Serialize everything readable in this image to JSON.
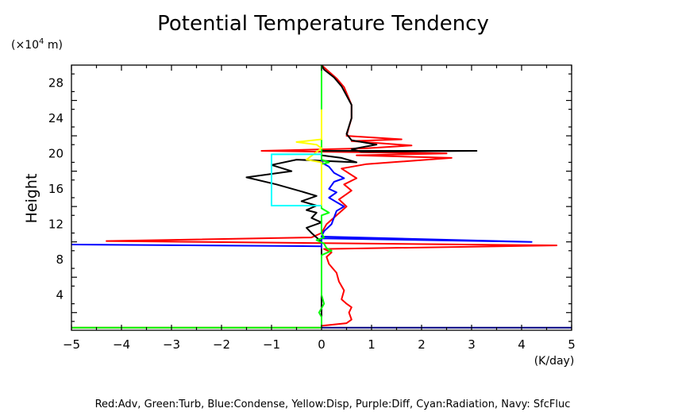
{
  "chart_data": {
    "type": "line",
    "title": "Potential Temperature Tendency",
    "ylabel": "Height",
    "y_unit_label_pre": "(×10",
    "y_unit_label_exp": "4",
    "y_unit_label_post": " m)",
    "x_unit_label": "(K/day)",
    "legend_text": "Red:Adv, Green:Turb, Blue:Condense, Yellow:Disp, Purple:Diff, Cyan:Radiation, Navy: SfcFluc",
    "xlim": [
      -5,
      5
    ],
    "ylim": [
      0,
      30
    ],
    "x_ticks": [
      {
        "v": -5,
        "label": "−5"
      },
      {
        "v": -4,
        "label": "−4"
      },
      {
        "v": -3,
        "label": "−3"
      },
      {
        "v": -2,
        "label": "−2"
      },
      {
        "v": -1,
        "label": "−1"
      },
      {
        "v": 0,
        "label": "0"
      },
      {
        "v": 1,
        "label": "1"
      },
      {
        "v": 2,
        "label": "2"
      },
      {
        "v": 3,
        "label": "3"
      },
      {
        "v": 4,
        "label": "4"
      },
      {
        "v": 5,
        "label": "5"
      }
    ],
    "y_ticks": [
      {
        "v": 4,
        "label": "4"
      },
      {
        "v": 8,
        "label": "8"
      },
      {
        "v": 12,
        "label": "12"
      },
      {
        "v": 16,
        "label": "16"
      },
      {
        "v": 20,
        "label": "20"
      },
      {
        "v": 24,
        "label": "24"
      },
      {
        "v": 28,
        "label": "28"
      }
    ],
    "series": [
      {
        "color": "#ff0000",
        "points": [
          [
            -5.0,
            0.3
          ],
          [
            0.0,
            0.3
          ],
          [
            0.0,
            0.5
          ],
          [
            0.5,
            0.8
          ],
          [
            0.6,
            1.2
          ],
          [
            0.55,
            2.0
          ],
          [
            0.6,
            2.6
          ],
          [
            0.5,
            3.0
          ],
          [
            0.4,
            3.5
          ],
          [
            0.45,
            4.5
          ],
          [
            0.35,
            5.5
          ],
          [
            0.3,
            6.5
          ],
          [
            0.15,
            7.5
          ],
          [
            0.1,
            8.3
          ],
          [
            0.2,
            8.8
          ],
          [
            0.05,
            9.2
          ],
          [
            4.7,
            9.6
          ],
          [
            -4.3,
            10.1
          ],
          [
            -0.2,
            10.5
          ],
          [
            0.0,
            11.0
          ],
          [
            0.1,
            12.0
          ],
          [
            0.3,
            13.0
          ],
          [
            0.5,
            14.0
          ],
          [
            0.35,
            14.8
          ],
          [
            0.6,
            15.8
          ],
          [
            0.45,
            16.5
          ],
          [
            0.7,
            17.2
          ],
          [
            0.4,
            18.3
          ],
          [
            0.9,
            18.8
          ],
          [
            2.6,
            19.5
          ],
          [
            0.7,
            19.8
          ],
          [
            2.5,
            20.0
          ],
          [
            -1.2,
            20.3
          ],
          [
            0.9,
            20.6
          ],
          [
            1.8,
            20.9
          ],
          [
            0.6,
            21.4
          ],
          [
            1.6,
            21.6
          ],
          [
            0.5,
            22.0
          ],
          [
            0.55,
            23.0
          ],
          [
            0.6,
            24.0
          ],
          [
            0.6,
            25.5
          ],
          [
            0.45,
            27.5
          ],
          [
            0.3,
            28.5
          ],
          [
            0.1,
            29.5
          ],
          [
            0.0,
            30.0
          ]
        ]
      },
      {
        "color": "#000000",
        "points": [
          [
            0.0,
            30.0
          ],
          [
            0.0,
            20.3
          ],
          [
            3.1,
            20.3
          ],
          [
            0.8,
            20.2
          ],
          [
            0.6,
            20.5
          ],
          [
            1.1,
            21.0
          ],
          [
            0.6,
            21.5
          ],
          [
            0.5,
            22.2
          ],
          [
            0.6,
            24.0
          ],
          [
            0.6,
            25.5
          ],
          [
            0.4,
            27.6
          ],
          [
            0.25,
            28.6
          ],
          [
            0.05,
            29.5
          ],
          [
            0.0,
            30.0
          ],
          [
            0.0,
            20.3
          ],
          [
            0.0,
            19.8
          ],
          [
            0.4,
            19.5
          ],
          [
            0.7,
            19.0
          ],
          [
            -0.5,
            19.3
          ],
          [
            -1.0,
            18.7
          ],
          [
            -0.6,
            18.0
          ],
          [
            -1.5,
            17.3
          ],
          [
            -0.9,
            16.5
          ],
          [
            -0.4,
            15.7
          ],
          [
            -0.1,
            15.2
          ],
          [
            -0.4,
            14.6
          ],
          [
            -0.1,
            14.1
          ],
          [
            -0.3,
            13.6
          ],
          [
            -0.1,
            13.3
          ],
          [
            -0.2,
            12.7
          ],
          [
            0.0,
            12.2
          ],
          [
            -0.3,
            11.6
          ],
          [
            -0.2,
            11.0
          ],
          [
            -0.1,
            10.5
          ],
          [
            0.0,
            10.0
          ],
          [
            0.0,
            0.3
          ]
        ]
      },
      {
        "color": "#0000ff",
        "points": [
          [
            -5.0,
            9.7
          ],
          [
            0.0,
            9.5
          ],
          [
            0.0,
            9.3
          ],
          [
            0.0,
            10.4
          ],
          [
            4.2,
            10.0
          ],
          [
            0.0,
            10.6
          ],
          [
            0.05,
            11.2
          ],
          [
            0.2,
            12.0
          ],
          [
            0.3,
            13.5
          ],
          [
            0.45,
            14.0
          ],
          [
            0.3,
            14.5
          ],
          [
            0.15,
            15.0
          ],
          [
            0.3,
            15.6
          ],
          [
            0.15,
            16.0
          ],
          [
            0.25,
            16.8
          ],
          [
            0.45,
            17.2
          ],
          [
            0.25,
            17.8
          ],
          [
            0.15,
            18.5
          ],
          [
            0.0,
            19.0
          ],
          [
            0.0,
            30.0
          ]
        ]
      },
      {
        "color": "#00ff00",
        "points": [
          [
            -5.0,
            0.3
          ],
          [
            0.0,
            0.3
          ],
          [
            0.0,
            1.5
          ],
          [
            -0.05,
            2.0
          ],
          [
            0.05,
            3.0
          ],
          [
            0.0,
            4.0
          ],
          [
            0.0,
            8.5
          ],
          [
            0.2,
            9.0
          ],
          [
            0.1,
            9.3
          ],
          [
            0.05,
            9.8
          ],
          [
            -0.1,
            10.2
          ],
          [
            0.05,
            10.5
          ],
          [
            0.0,
            11.0
          ],
          [
            0.0,
            13.0
          ],
          [
            0.15,
            13.3
          ],
          [
            0.0,
            13.8
          ],
          [
            0.0,
            18.8
          ],
          [
            0.15,
            19.0
          ],
          [
            0.0,
            19.3
          ],
          [
            0.0,
            30.0
          ]
        ]
      },
      {
        "color": "#ffff00",
        "points": [
          [
            0.0,
            25.0
          ],
          [
            0.0,
            21.6
          ],
          [
            -0.5,
            21.3
          ],
          [
            -0.1,
            21.0
          ],
          [
            0.0,
            20.6
          ],
          [
            -0.3,
            19.3
          ],
          [
            0.0,
            19.0
          ],
          [
            0.0,
            14.0
          ]
        ]
      },
      {
        "color": "#00ffff",
        "points": [
          [
            0.0,
            19.9
          ],
          [
            -1.0,
            19.9
          ],
          [
            -1.0,
            14.1
          ],
          [
            0.0,
            14.1
          ]
        ]
      },
      {
        "color": "#000080",
        "points": [
          [
            0.0,
            0.3
          ],
          [
            5.0,
            0.3
          ]
        ]
      }
    ]
  }
}
